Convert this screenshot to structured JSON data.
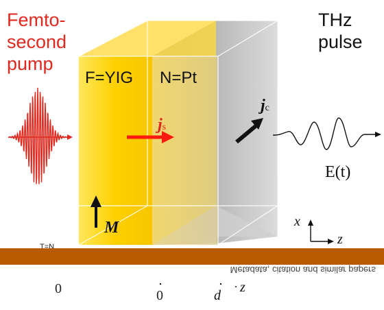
{
  "pump_label": [
    "Femto-",
    "second",
    "pump"
  ],
  "thz_label": [
    "THz",
    "pulse"
  ],
  "material_f": "F=YIG",
  "material_n": "N=Pt",
  "spin_current": {
    "symbol": "j",
    "subscript": "s"
  },
  "charge_current": {
    "symbol": "j",
    "subscript": "c"
  },
  "field_label": "E(t)",
  "magnetization": "M",
  "axes": {
    "vertical": "x",
    "horizontal": "z"
  },
  "positions": {
    "left": "0",
    "interface": "0",
    "right": "d",
    "axis": "z"
  },
  "stray_text": {
    "left": "0",
    "top": "T=N"
  },
  "footer": "Metadata, citation and similar papers",
  "colors": {
    "ferromagnet": "#ffd21f",
    "metal": "#d7d7d7",
    "pump": "#e0281e",
    "banner": "#b85a00",
    "spin_arrow": "#ff1a10"
  }
}
